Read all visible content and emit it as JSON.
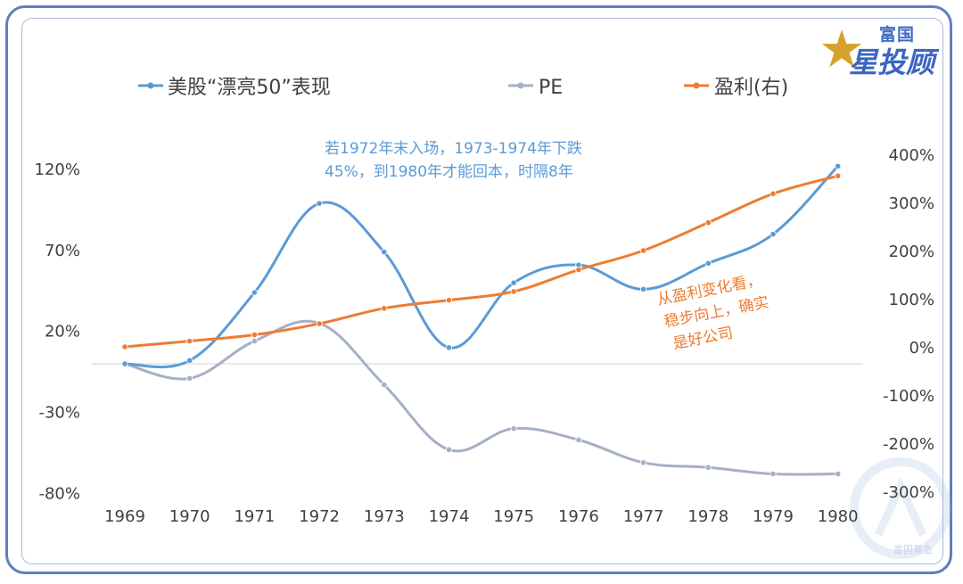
{
  "brand": {
    "logo_top": "富国",
    "logo_main": "星投顾",
    "watermark": "富国基金"
  },
  "colors": {
    "frame": "#5b7fc4",
    "stock": "#5b9bd5",
    "pe": "#a5b0c6",
    "profit": "#ed7d31",
    "note_blue": "#5b9bd5",
    "note_orange": "#ed7d31",
    "axis_text": "#404040"
  },
  "legend": [
    {
      "label": "美股“漂亮50”表现",
      "series": "stock"
    },
    {
      "label": "PE",
      "series": "pe"
    },
    {
      "label": "盈利(右)",
      "series": "profit"
    }
  ],
  "annotations": {
    "blue_line1": "若1972年末入场，1973-1974年下跌",
    "blue_line2": "45%，到1980年才能回本，时隔8年",
    "orange_line1": "从盈利变化看，",
    "orange_line2": "稳步向上，确实",
    "orange_line3": "是好公司"
  },
  "chart_data": {
    "type": "line",
    "title": "",
    "categories": [
      "1969",
      "1970",
      "1971",
      "1972",
      "1973",
      "1974",
      "1975",
      "1976",
      "1977",
      "1978",
      "1979",
      "1980"
    ],
    "left_axis": {
      "ticks": [
        "120%",
        "70%",
        "20%",
        "-30%",
        "-80%"
      ],
      "tick_values": [
        120,
        70,
        20,
        -30,
        -80
      ],
      "ylim": [
        -80,
        120
      ]
    },
    "right_axis": {
      "ticks": [
        "400%",
        "300%",
        "200%",
        "100%",
        "0%",
        "-100%",
        "-200%",
        "-300%"
      ],
      "tick_values": [
        400,
        300,
        200,
        100,
        0,
        -100,
        -200,
        -300
      ],
      "ylim": [
        -300,
        400
      ]
    },
    "series": [
      {
        "name": "美股“漂亮50”表现",
        "axis": "left",
        "values": [
          0,
          2,
          44,
          99,
          69,
          10,
          50,
          61,
          46,
          62,
          80,
          122
        ]
      },
      {
        "name": "PE",
        "axis": "left",
        "values": [
          0,
          -9,
          14,
          25,
          -13,
          -53,
          -40,
          -47,
          -61,
          -64,
          -68,
          -68
        ]
      },
      {
        "name": "盈利(右)",
        "axis": "right",
        "values": [
          0,
          12,
          25,
          48,
          80,
          97,
          115,
          160,
          200,
          258,
          318,
          355
        ]
      }
    ]
  }
}
